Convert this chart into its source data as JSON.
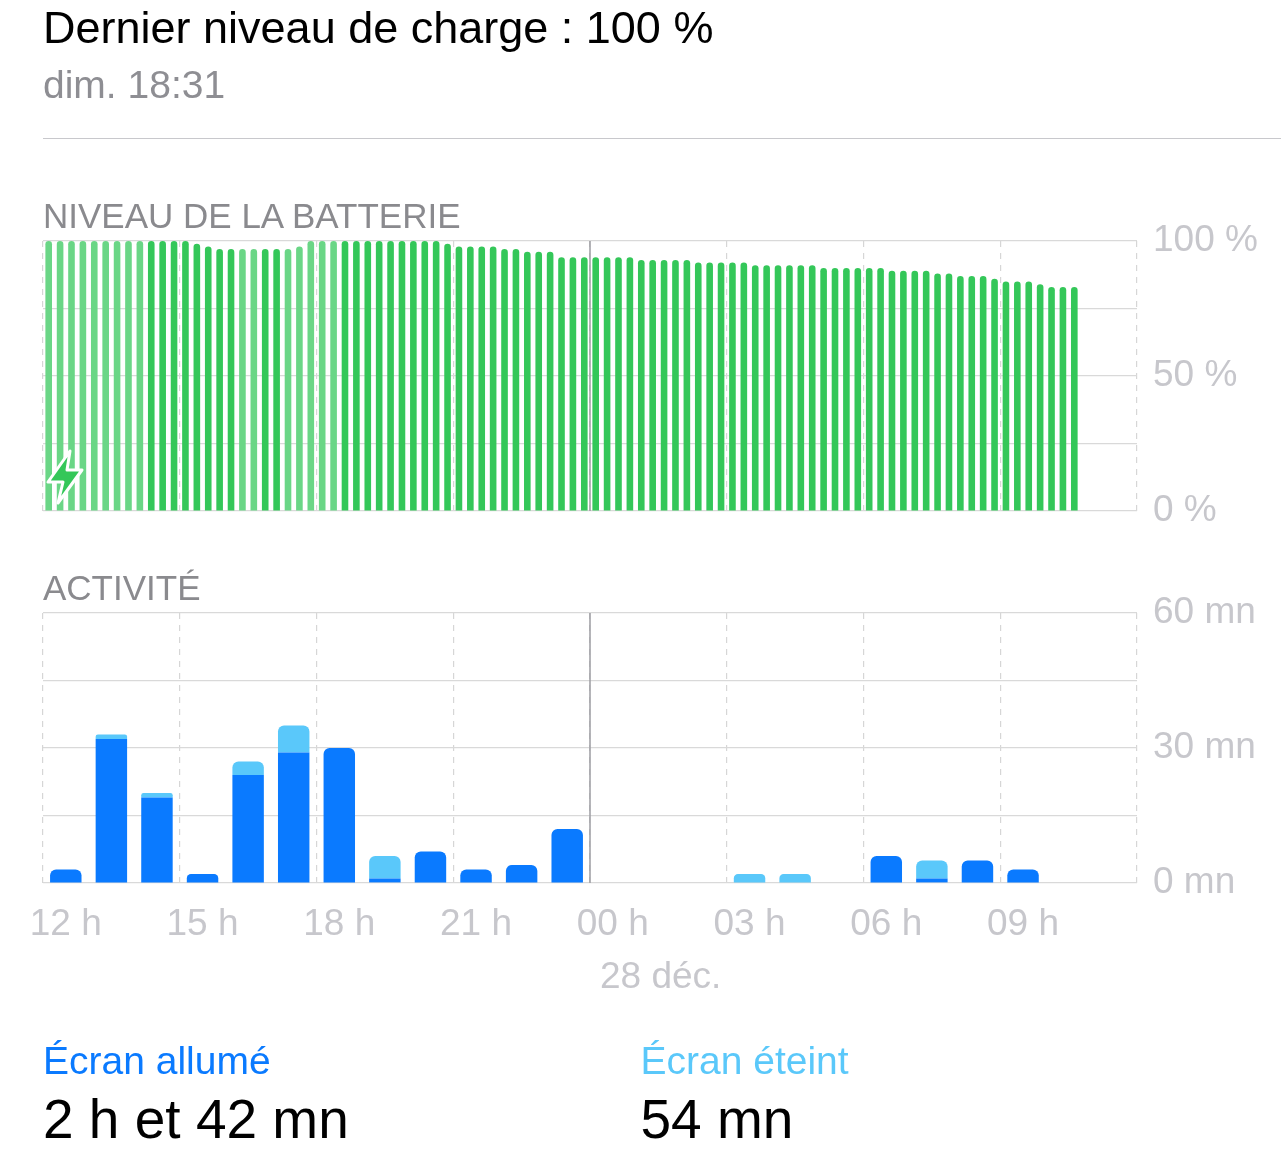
{
  "chart_data": [
    {
      "type": "other",
      "title": "Dernier niveau de charge : 100 %",
      "subtitle": "dim. 18:31"
    },
    {
      "type": "bar",
      "title": "NIVEAU DE LA BATTERIE",
      "categories": [
        "12 h",
        null,
        null,
        "15 h",
        null,
        null,
        "18 h",
        null,
        null,
        "21 h",
        null,
        null,
        "00 h",
        null,
        null,
        "03 h",
        null,
        null,
        "06 h",
        null,
        null,
        "09 h",
        null,
        null
      ],
      "series": [
        {
          "color": "#34c759",
          "values": [
            100,
            100,
            100,
            100,
            97,
            97,
            100,
            100,
            100,
            98,
            97,
            96,
            94,
            93,
            93,
            92,
            91,
            90,
            90,
            89,
            87,
            85,
            83,
            null
          ],
          "colors": [
            "#6ad686",
            "#6ad686",
            "#6ad686",
            "#34c759",
            "#34c759",
            "#34c759",
            "#6ad686",
            "#34c759",
            "#34c759",
            "#34c759",
            "#34c759",
            "#34c759",
            "#34c759",
            "#34c759",
            "#34c759",
            "#34c759",
            "#34c759",
            "#34c759",
            "#34c759",
            "#34c759",
            "#34c759",
            "#34c759",
            "#34c759",
            "#34c759"
          ]
        },
        {
          "color": "#34c759",
          "values": [
            100,
            100,
            100,
            99,
            97,
            97,
            100,
            100,
            100,
            98,
            97,
            94,
            94,
            93,
            92,
            92,
            91,
            90,
            90,
            89,
            87,
            85,
            83,
            null
          ],
          "colors": [
            "#6ad686",
            "#6ad686",
            "#34c759",
            "#34c759",
            "#6ad686",
            "#6ad686",
            "#6ad686",
            "#34c759",
            "#34c759",
            "#34c759",
            "#34c759",
            "#34c759",
            "#34c759",
            "#34c759",
            "#34c759",
            "#34c759",
            "#34c759",
            "#34c759",
            "#34c759",
            "#34c759",
            "#34c759",
            "#34c759",
            "#34c759",
            "#34c759"
          ]
        },
        {
          "color": "#34c759",
          "values": [
            100,
            100,
            100,
            98,
            97,
            98,
            100,
            100,
            100,
            98,
            96,
            94,
            94,
            93,
            92,
            91,
            91,
            90,
            89,
            88,
            87,
            85,
            83,
            null
          ],
          "colors": [
            "#6ad686",
            "#6ad686",
            "#34c759",
            "#34c759",
            "#6ad686",
            "#6ad686",
            "#34c759",
            "#34c759",
            "#34c759",
            "#34c759",
            "#34c759",
            "#34c759",
            "#34c759",
            "#34c759",
            "#34c759",
            "#34c759",
            "#34c759",
            "#34c759",
            "#34c759",
            "#34c759",
            "#34c759",
            "#34c759",
            "#34c759",
            "#34c759"
          ]
        },
        {
          "color": "#34c759",
          "values": [
            100,
            100,
            100,
            97,
            97,
            100,
            100,
            100,
            99,
            98,
            96,
            94,
            94,
            93,
            92,
            91,
            91,
            90,
            89,
            88,
            86,
            84,
            null,
            null
          ],
          "colors": [
            "#6ad686",
            "#6ad686",
            "#34c759",
            "#34c759",
            "#34c759",
            "#6ad686",
            "#34c759",
            "#34c759",
            "#34c759",
            "#34c759",
            "#34c759",
            "#34c759",
            "#34c759",
            "#34c759",
            "#34c759",
            "#34c759",
            "#34c759",
            "#34c759",
            "#34c759",
            "#34c759",
            "#34c759",
            "#34c759",
            "#34c759",
            "#34c759"
          ]
        }
      ],
      "ylim": [
        0,
        100
      ],
      "yticks": [
        {
          "value": 0,
          "label": "0 %"
        },
        {
          "value": 25,
          "label": null
        },
        {
          "value": 50,
          "label": "50 %"
        },
        {
          "value": 75,
          "label": null
        },
        {
          "value": 100,
          "label": "100 %"
        }
      ],
      "tick_labels": "y",
      "grid": true,
      "ref_lines": [
        {
          "axis": "x",
          "value": "00 h",
          "color": "#9d9da2"
        }
      ]
    },
    {
      "type": "bar",
      "title": "ACTIVITÉ",
      "stacked": true,
      "categories": [
        "12 h",
        null,
        null,
        "15 h",
        null,
        null,
        "18 h",
        null,
        null,
        "21 h",
        null,
        null,
        "00 h",
        null,
        null,
        "03 h",
        null,
        null,
        "06 h",
        null,
        null,
        "09 h",
        null,
        null
      ],
      "series": [
        {
          "name": "Écran allumé",
          "color": "#0a7aff",
          "values": [
            3,
            32,
            19,
            2,
            24,
            29,
            30,
            1,
            7,
            3,
            4,
            12,
            null,
            null,
            null,
            null,
            null,
            null,
            6,
            1,
            5,
            3,
            null,
            null
          ]
        },
        {
          "name": "Écran éteint",
          "color": "#5ac8fa",
          "values": [
            null,
            1,
            1,
            null,
            3,
            6,
            null,
            5,
            null,
            null,
            null,
            null,
            null,
            null,
            null,
            2,
            2,
            null,
            null,
            4,
            null,
            null,
            null,
            null
          ]
        }
      ],
      "ylim": [
        0,
        60
      ],
      "yticks": [
        {
          "value": 0,
          "label": "0 mn"
        },
        {
          "value": 15,
          "label": null
        },
        {
          "value": 30,
          "label": "30 mn"
        },
        {
          "value": 45,
          "label": null
        },
        {
          "value": 60,
          "label": "60 mn"
        }
      ],
      "grid": true,
      "legend": "bottom",
      "ref_lines": [
        {
          "axis": "x",
          "value": "00 h",
          "label": "28 déc.",
          "color": "#9d9da2"
        }
      ],
      "annotations": [
        "2 h et 42 mn",
        "54 mn"
      ]
    }
  ]
}
